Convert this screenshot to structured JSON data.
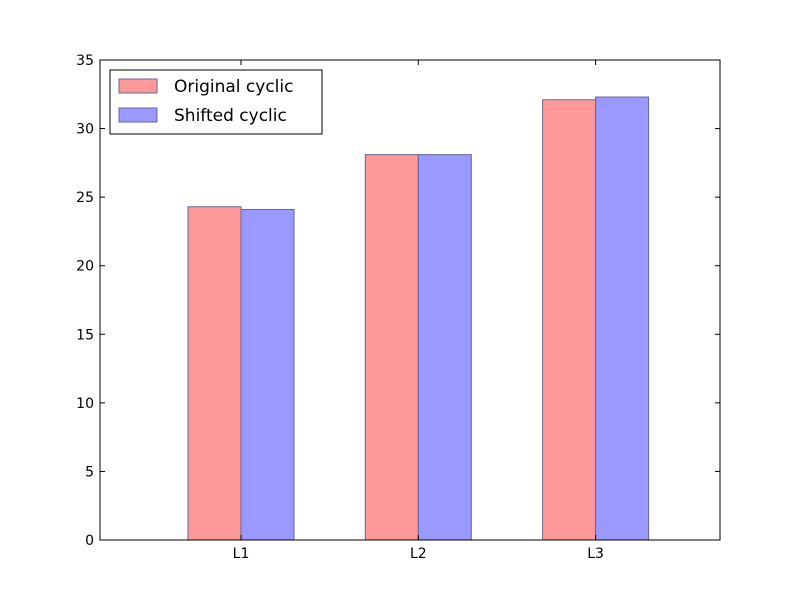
{
  "chart_data": {
    "type": "bar",
    "categories": [
      "L1",
      "L2",
      "L3"
    ],
    "series": [
      {
        "name": "Original cyclic",
        "values": [
          24.3,
          28.1,
          32.1
        ],
        "color": "#ff9999"
      },
      {
        "name": "Shifted cyclic",
        "values": [
          24.1,
          28.1,
          32.3
        ],
        "color": "#9999ff"
      }
    ],
    "title": "",
    "xlabel": "",
    "ylabel": "",
    "ylim": [
      0,
      35
    ],
    "yticks": [
      0,
      5,
      10,
      15,
      20,
      25,
      30,
      35
    ],
    "grid": false,
    "legend_position": "top-left",
    "bar_edge_color": "#666699"
  }
}
